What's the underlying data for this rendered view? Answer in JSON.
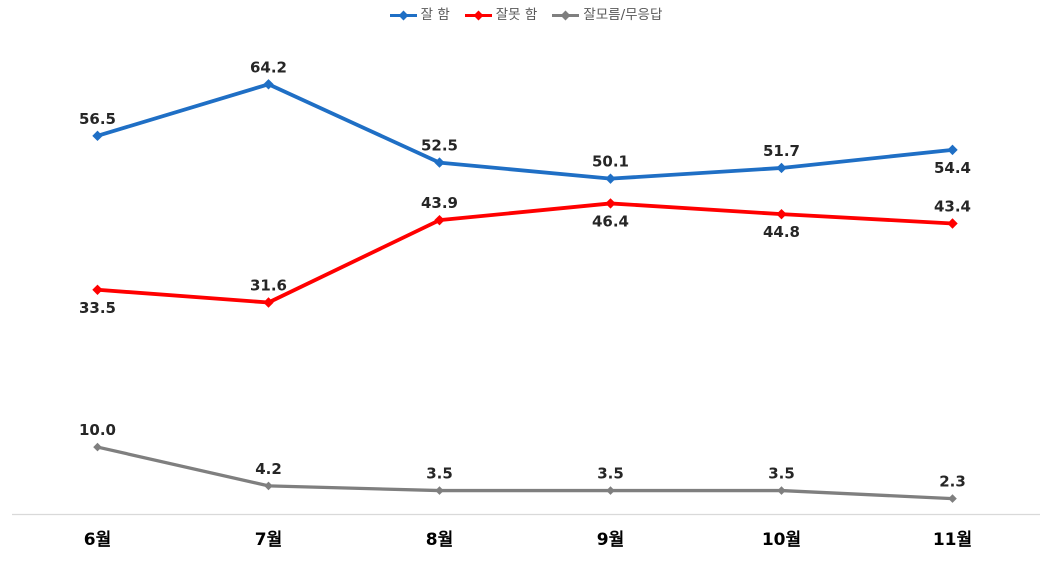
{
  "chart_data": {
    "type": "line",
    "title": "",
    "xlabel": "",
    "ylabel": "",
    "categories": [
      "6월",
      "7월",
      "8월",
      "9월",
      "10월",
      "11월"
    ],
    "series": [
      {
        "name": "잘 함",
        "color": "#1F6FC5",
        "values": [
          56.5,
          64.2,
          52.5,
          50.1,
          51.7,
          54.4
        ],
        "label_positions": [
          "above",
          "above",
          "above",
          "above",
          "above",
          "below"
        ]
      },
      {
        "name": "잘못 함",
        "color": "#FF0000",
        "values": [
          33.5,
          31.6,
          43.9,
          46.4,
          44.8,
          43.4
        ],
        "label_positions": [
          "below",
          "above",
          "above",
          "below",
          "below",
          "above"
        ]
      },
      {
        "name": "잘모름/무응답",
        "color": "#7F7F7F",
        "values": [
          10.0,
          4.2,
          3.5,
          3.5,
          3.5,
          2.3
        ],
        "label_positions": [
          "above",
          "above",
          "above",
          "above",
          "above",
          "above"
        ]
      }
    ],
    "ylim": [
      0,
      75
    ],
    "grid": false,
    "legend_position": "top-center",
    "axis_line_color": "#D9D9D9",
    "data_label_color": "#262626",
    "category_label_color": "#000000",
    "legend_text_color": "#595959"
  }
}
